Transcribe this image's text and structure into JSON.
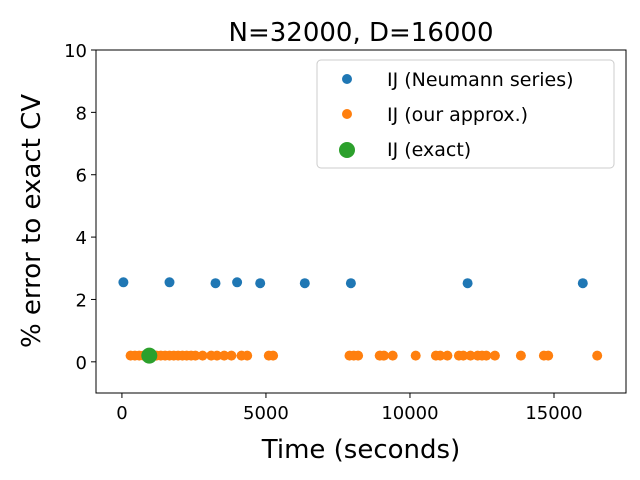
{
  "chart_data": {
    "type": "scatter",
    "title": "N=32000, D=16000",
    "xlabel": "Time (seconds)",
    "ylabel": "% error to exact CV",
    "xlim": [
      -900,
      17500
    ],
    "ylim": [
      -1,
      10
    ],
    "xticks": [
      0,
      5000,
      10000,
      15000
    ],
    "yticks": [
      0,
      2,
      4,
      6,
      8,
      10
    ],
    "grid": false,
    "legend_position": "top-right",
    "series": [
      {
        "name": "IJ (Neumann series)",
        "color": "#1f77b4",
        "marker_size": "normal",
        "x": [
          50,
          1650,
          3250,
          4000,
          4800,
          6350,
          7950,
          12000,
          16000
        ],
        "y": [
          2.55,
          2.55,
          2.52,
          2.55,
          2.52,
          2.52,
          2.52,
          2.52,
          2.52
        ]
      },
      {
        "name": "IJ (our approx.)",
        "color": "#ff7f0e",
        "marker_size": "normal",
        "x": [
          300,
          450,
          600,
          750,
          900,
          1050,
          1200,
          1350,
          1500,
          1650,
          1800,
          1950,
          2100,
          2250,
          2400,
          2550,
          2800,
          3100,
          3300,
          3550,
          3800,
          4150,
          4350,
          5100,
          5250,
          7900,
          8050,
          8200,
          8950,
          9100,
          9400,
          10200,
          10900,
          11050,
          11300,
          11700,
          11850,
          12100,
          12350,
          12500,
          12650,
          12950,
          13850,
          14650,
          14800,
          16500
        ],
        "y": [
          0.2,
          0.2,
          0.2,
          0.2,
          0.2,
          0.2,
          0.2,
          0.2,
          0.2,
          0.2,
          0.2,
          0.2,
          0.2,
          0.2,
          0.2,
          0.2,
          0.2,
          0.2,
          0.2,
          0.2,
          0.2,
          0.2,
          0.2,
          0.2,
          0.2,
          0.2,
          0.2,
          0.2,
          0.2,
          0.2,
          0.2,
          0.2,
          0.2,
          0.2,
          0.2,
          0.2,
          0.2,
          0.2,
          0.2,
          0.2,
          0.2,
          0.2,
          0.2,
          0.2,
          0.2,
          0.2
        ]
      },
      {
        "name": "IJ (exact)",
        "color": "#2ca02c",
        "marker_size": "large",
        "x": [
          950
        ],
        "y": [
          0.2
        ]
      }
    ]
  }
}
